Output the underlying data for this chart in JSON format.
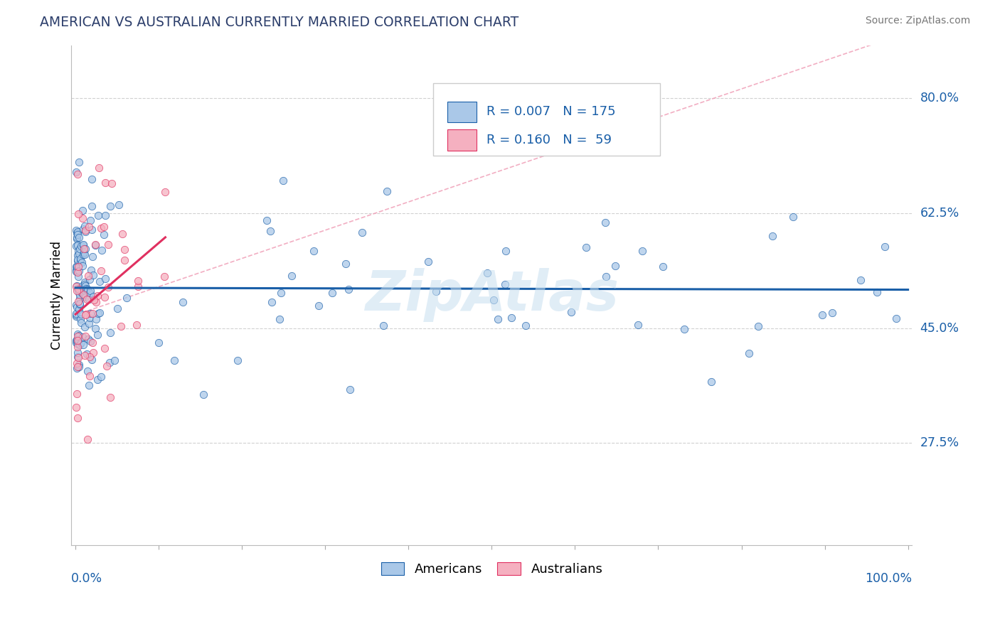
{
  "title": "AMERICAN VS AUSTRALIAN CURRENTLY MARRIED CORRELATION CHART",
  "source_text": "Source: ZipAtlas.com",
  "ylabel": "Currently Married",
  "legend_labels": [
    "Americans",
    "Australians"
  ],
  "legend_R": [
    0.007,
    0.16
  ],
  "legend_N": [
    175,
    59
  ],
  "american_color": "#aac8e8",
  "australian_color": "#f5b0c0",
  "american_trend_color": "#1a5fa8",
  "australian_trend_color": "#e03060",
  "dashed_line_color": "#f0a0b8",
  "ytick_labels": [
    "27.5%",
    "45.0%",
    "62.5%",
    "80.0%"
  ],
  "ytick_values": [
    0.275,
    0.45,
    0.625,
    0.8
  ],
  "ymin": 0.12,
  "ymax": 0.88,
  "watermark_color": "#c8dff0",
  "watermark_text": "ZipAtlas",
  "grid_color": "#cccccc"
}
